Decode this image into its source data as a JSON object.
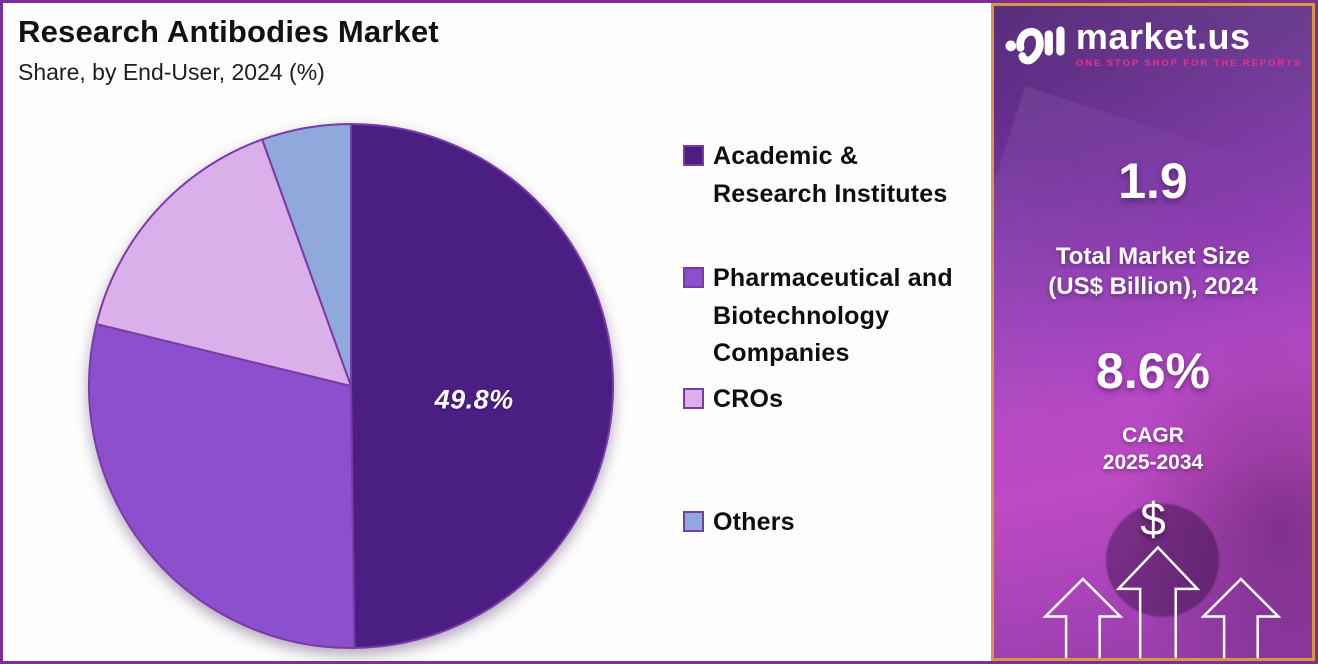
{
  "header": {
    "title": "Research Antibodies Market",
    "subtitle": "Share, by End-User, 2024 (%)"
  },
  "chart_data": {
    "type": "pie",
    "title": "Research Antibodies Market — Share, by End-User, 2024 (%)",
    "categories": [
      "Academic & Research Institutes",
      "Pharmaceutical and Biotechnology Companies",
      "CROs",
      "Others"
    ],
    "values": [
      49.8,
      29.0,
      15.7,
      5.5
    ],
    "colors": [
      "#4A1E83",
      "#8C50CE",
      "#DAAFEA",
      "#90A9DC"
    ],
    "slice_stroke": "#7B3AA6",
    "start_angle_deg": 0,
    "direction": "clockwise",
    "legend_position": "right",
    "labeled_slice": {
      "index": 0,
      "label": "49.8%"
    }
  },
  "legend": {
    "items": [
      {
        "label": "Academic &\nResearch Institutes"
      },
      {
        "label": "Pharmaceutical and\nBiotechnology\nCompanies"
      },
      {
        "label": "CROs"
      },
      {
        "label": "Others"
      }
    ]
  },
  "sidebar": {
    "logo_text": "market.us",
    "tagline": "ONE STOP SHOP FOR THE REPORTS",
    "market_size_value": "1.9",
    "market_size_label": "Total Market Size\n(US$ Billion), 2024",
    "cagr_value": "8.6%",
    "cagr_label": "CAGR\n2025-2034",
    "dollar_symbol": "$"
  },
  "colors": {
    "panel_border": "#7C2F96",
    "sidebar_border": "#D99840",
    "accent_pink": "#EC2E90",
    "pie_stroke": "#7B3AA6"
  }
}
